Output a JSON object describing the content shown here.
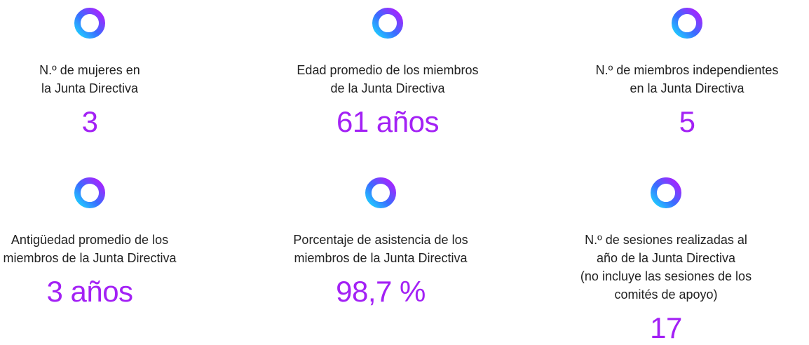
{
  "items": [
    {
      "label": [
        "N.º de mujeres en",
        "la Junta Directiva"
      ],
      "value": "3"
    },
    {
      "label": [
        "Edad promedio de los miembros",
        "de la Junta Directiva"
      ],
      "value": "61 años"
    },
    {
      "label": [
        "N.º de miembros independientes",
        "en la Junta Directiva"
      ],
      "value": "5"
    },
    {
      "label": [
        "Antigüedad promedio de los",
        "miembros de la Junta Directiva"
      ],
      "value": "3 años"
    },
    {
      "label": [
        "Porcentaje de asistencia de los",
        "miembros de la Junta Directiva"
      ],
      "value": "98,7 %"
    },
    {
      "label": [
        "N.º de sesiones realizadas al",
        "año de la Junta Directiva",
        "(no incluye las sesiones de los",
        "comités de apoyo)"
      ],
      "value": "17"
    }
  ]
}
